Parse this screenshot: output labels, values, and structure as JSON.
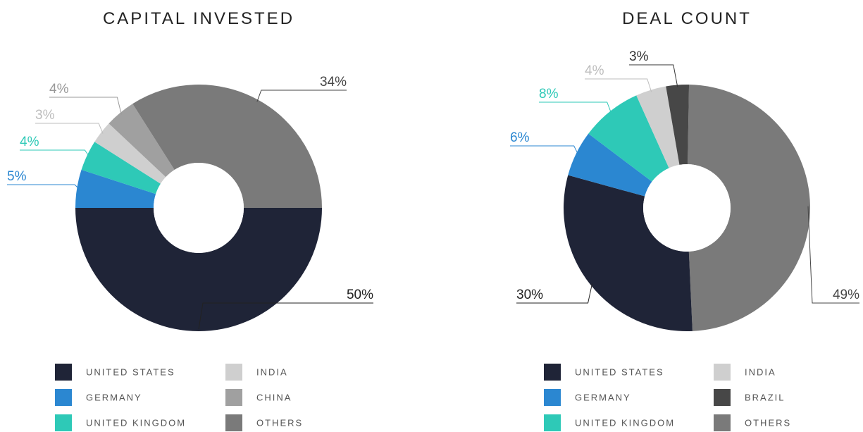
{
  "chart_data": [
    {
      "type": "donut",
      "title": "CAPITAL INVESTED",
      "categories": [
        "GERMANY",
        "UNITED KINGDOM",
        "INDIA",
        "CHINA",
        "OTHERS",
        "UNITED STATES"
      ],
      "values": [
        5,
        4,
        3,
        4,
        34,
        50
      ],
      "value_labels": [
        "5%",
        "4%",
        "3%",
        "4%",
        "34%",
        "50%"
      ],
      "colors": [
        "#2b87d1",
        "#2ec9b7",
        "#cfcfcf",
        "#a0a0a0",
        "#7a7a7a",
        "#1f2437"
      ]
    },
    {
      "type": "donut",
      "title": "DEAL COUNT",
      "categories": [
        "OTHERS",
        "UNITED STATES",
        "GERMANY",
        "UNITED KINGDOM",
        "INDIA",
        "BRAZIL"
      ],
      "values": [
        49,
        30,
        6,
        8,
        4,
        3
      ],
      "value_labels": [
        "49%",
        "30%",
        "6%",
        "8%",
        "4%",
        "3%"
      ],
      "colors": [
        "#7a7a7a",
        "#1f2437",
        "#2b87d1",
        "#2ec9b7",
        "#cfcfcf",
        "#474747"
      ]
    }
  ]
}
